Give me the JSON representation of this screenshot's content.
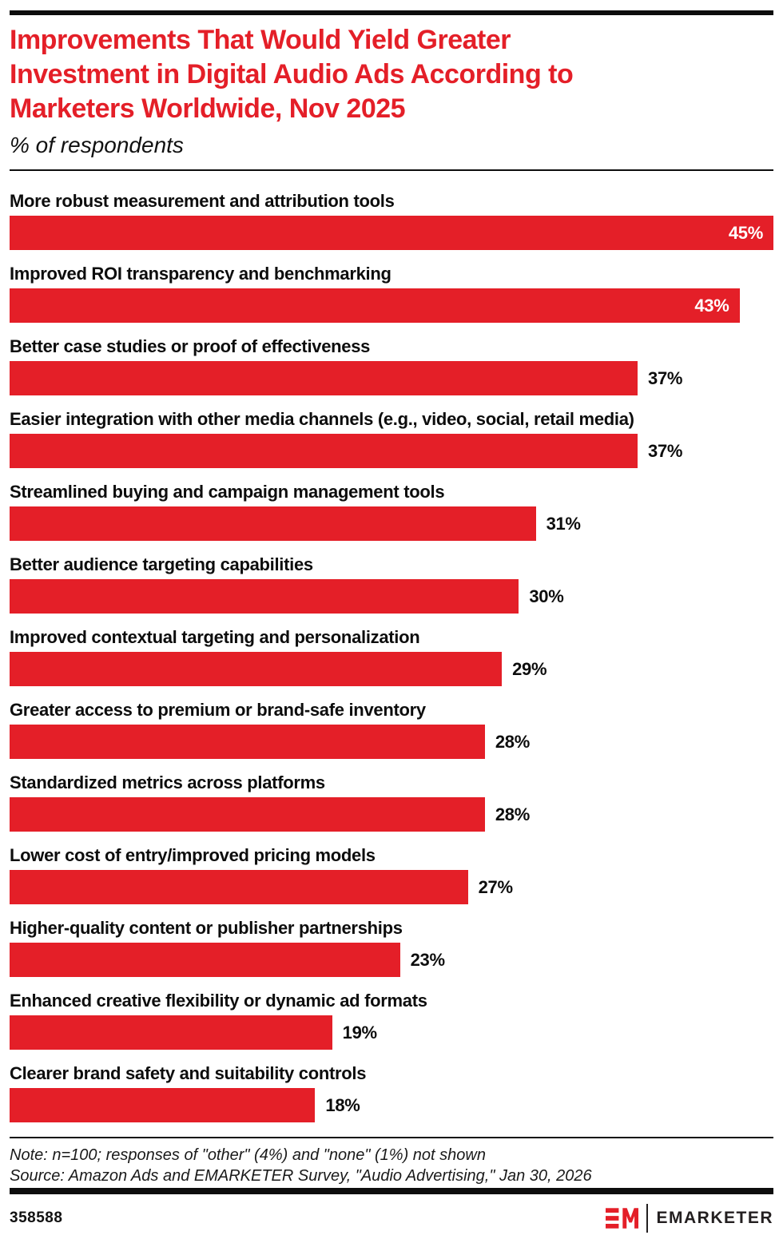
{
  "page": {
    "background": "#ffffff",
    "accent_red": "#e41f28",
    "text_black": "#0d0d0d"
  },
  "header": {
    "title_lines": [
      "Improvements That Would Yield Greater",
      "Investment in Digital Audio Ads According to",
      "Marketers Worldwide, Nov 2025"
    ],
    "subtitle": "% of respondents"
  },
  "chart_data": {
    "type": "bar",
    "orientation": "horizontal",
    "title": "Improvements That Would Yield Greater Investment in Digital Audio Ads According to Marketers Worldwide, Nov 2025",
    "ylabel": "",
    "xlabel": "% of respondents",
    "xlim": [
      0,
      45
    ],
    "grid": false,
    "legend": "none",
    "bar_color": "#e41f28",
    "value_suffix": "%",
    "inside_label_min_value": 40,
    "categories": [
      "More robust measurement and attribution tools",
      "Improved ROI transparency and benchmarking",
      "Better case studies or proof of effectiveness",
      "Easier integration with other media channels (e.g., video, social, retail media)",
      "Streamlined buying and campaign management tools",
      "Better audience targeting capabilities",
      "Improved contextual targeting and personalization",
      "Greater access to premium or brand-safe inventory",
      "Standardized metrics across platforms",
      "Lower cost of entry/improved pricing models",
      "Higher-quality content or publisher partnerships",
      "Enhanced creative flexibility or dynamic ad formats",
      "Clearer brand safety and suitability controls"
    ],
    "values": [
      45,
      43,
      37,
      37,
      31,
      30,
      29,
      28,
      28,
      27,
      23,
      19,
      18
    ]
  },
  "footer": {
    "note": "Note: n=100; responses of \"other\" (4%) and \"none\" (1%) not shown",
    "source": "Source: Amazon Ads and EMARKETER Survey, \"Audio Advertising,\" Jan 30, 2026",
    "chart_id": "358588",
    "logo_text": "EMARKETER"
  }
}
